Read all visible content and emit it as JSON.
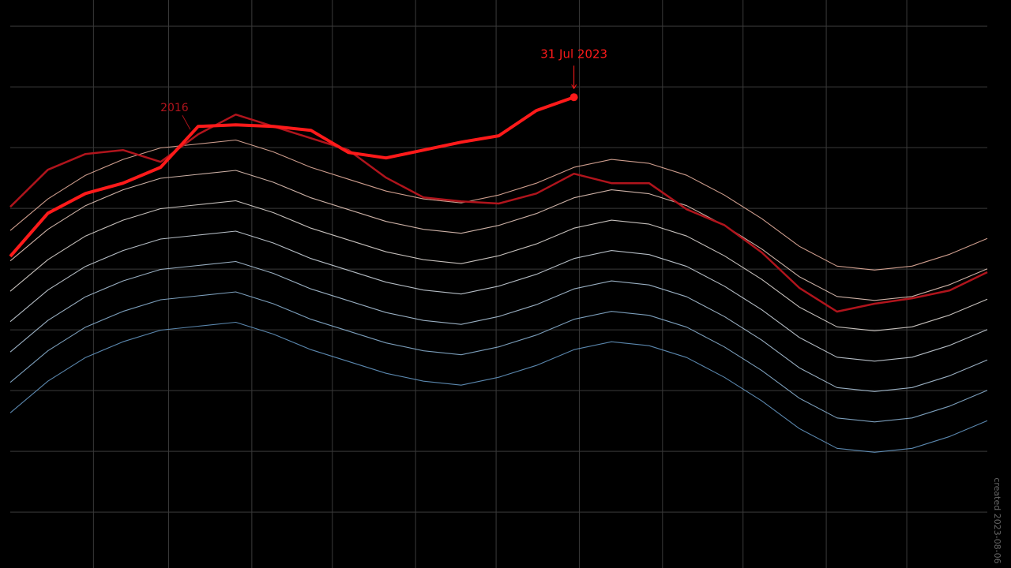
{
  "chart_data": {
    "type": "line",
    "x": [
      1,
      15,
      29,
      43,
      57,
      71,
      85,
      99,
      113,
      127,
      141,
      155,
      169,
      183,
      197,
      211,
      225,
      239,
      253,
      267,
      281,
      295,
      309,
      323,
      337,
      351,
      365
    ],
    "xlim": [
      1,
      365
    ],
    "xticks": [
      32,
      60,
      91,
      121,
      152,
      182,
      213,
      244,
      274,
      305,
      335
    ],
    "ylim": [
      19.416,
      21.286
    ],
    "yticks": [
      19.6,
      19.8,
      20.0,
      20.2,
      20.4,
      20.6,
      20.8,
      21.0,
      21.2
    ],
    "grid": true,
    "footnote": "created 2023-08-06",
    "series": [
      {
        "color": "#6a9fcc",
        "values": [
          19.927,
          20.031,
          20.109,
          20.161,
          20.199,
          20.212,
          20.225,
          20.186,
          20.135,
          20.096,
          20.057,
          20.031,
          20.018,
          20.044,
          20.083,
          20.135,
          20.161,
          20.148,
          20.109,
          20.044,
          19.966,
          19.875,
          19.81,
          19.797,
          19.81,
          19.849,
          19.901
        ]
      },
      {
        "color": "#8fb8da",
        "values": [
          20.027,
          20.131,
          20.209,
          20.261,
          20.299,
          20.312,
          20.325,
          20.286,
          20.235,
          20.196,
          20.157,
          20.131,
          20.118,
          20.144,
          20.183,
          20.235,
          20.261,
          20.248,
          20.209,
          20.144,
          20.066,
          19.975,
          19.91,
          19.897,
          19.91,
          19.949,
          20.001
        ]
      },
      {
        "color": "#b3cde3",
        "values": [
          20.127,
          20.231,
          20.309,
          20.361,
          20.399,
          20.412,
          20.425,
          20.386,
          20.335,
          20.296,
          20.257,
          20.231,
          20.218,
          20.244,
          20.283,
          20.335,
          20.361,
          20.348,
          20.309,
          20.244,
          20.166,
          20.075,
          20.01,
          19.997,
          20.01,
          20.049,
          20.101
        ]
      },
      {
        "color": "#d4dde6",
        "values": [
          20.227,
          20.331,
          20.409,
          20.461,
          20.499,
          20.512,
          20.525,
          20.486,
          20.435,
          20.396,
          20.357,
          20.331,
          20.318,
          20.344,
          20.383,
          20.435,
          20.461,
          20.448,
          20.409,
          20.344,
          20.266,
          20.175,
          20.11,
          20.097,
          20.11,
          20.149,
          20.201
        ]
      },
      {
        "color": "#e8e0dc",
        "values": [
          20.327,
          20.431,
          20.509,
          20.561,
          20.599,
          20.612,
          20.625,
          20.586,
          20.535,
          20.496,
          20.457,
          20.431,
          20.418,
          20.444,
          20.483,
          20.535,
          20.561,
          20.548,
          20.509,
          20.444,
          20.366,
          20.275,
          20.21,
          20.197,
          20.21,
          20.249,
          20.301
        ]
      },
      {
        "color": "#f0cfc2",
        "values": [
          20.427,
          20.531,
          20.609,
          20.661,
          20.699,
          20.712,
          20.725,
          20.686,
          20.635,
          20.596,
          20.557,
          20.531,
          20.518,
          20.544,
          20.583,
          20.635,
          20.661,
          20.648,
          20.609,
          20.544,
          20.466,
          20.375,
          20.31,
          20.297,
          20.31,
          20.349,
          20.401
        ]
      },
      {
        "color": "#f2b9a6",
        "values": [
          20.527,
          20.631,
          20.709,
          20.761,
          20.799,
          20.812,
          20.825,
          20.786,
          20.735,
          20.696,
          20.657,
          20.631,
          20.618,
          20.644,
          20.683,
          20.735,
          20.761,
          20.748,
          20.709,
          20.644,
          20.566,
          20.475,
          20.41,
          20.397,
          20.41,
          20.449,
          20.501
        ]
      },
      {
        "name": "2016",
        "color": "#b0141c",
        "values": [
          20.605,
          20.727,
          20.779,
          20.792,
          20.753,
          20.844,
          20.909,
          20.87,
          20.831,
          20.792,
          20.701,
          20.636,
          20.623,
          20.616,
          20.649,
          20.714,
          20.683,
          20.683,
          20.597,
          20.545,
          20.455,
          20.338,
          20.26,
          20.286,
          20.304,
          20.33,
          20.39
        ]
      },
      {
        "end_label": "31 Jul 2023",
        "color": "#ff1a1a",
        "values": [
          20.442,
          20.584,
          20.649,
          20.683,
          20.735,
          20.87,
          20.875,
          20.87,
          20.857,
          20.784,
          20.766,
          20.792,
          20.818,
          20.839,
          20.922,
          20.966,
          null,
          null,
          null,
          null,
          null,
          null,
          null,
          null,
          null,
          null,
          null
        ]
      }
    ]
  }
}
